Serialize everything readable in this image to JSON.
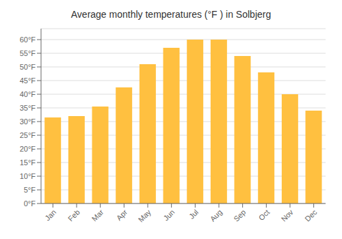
{
  "chart_data": {
    "type": "bar",
    "title": "Average monthly temperatures (°F ) in Solbjerg",
    "categories": [
      "Jan",
      "Feb",
      "Mar",
      "Apr",
      "May",
      "Jun",
      "Jul",
      "Aug",
      "Sep",
      "Oct",
      "Nov",
      "Dec"
    ],
    "values": [
      31.5,
      32.0,
      35.5,
      42.5,
      51.0,
      57.0,
      60.0,
      60.0,
      54.0,
      48.0,
      40.0,
      34.0
    ],
    "color": "#FFC040",
    "ylim": [
      0,
      64
    ],
    "yticks": [
      {
        "value": 0,
        "label": "0°F"
      },
      {
        "value": 5,
        "label": "5°F"
      },
      {
        "value": 10,
        "label": "10°F"
      },
      {
        "value": 15,
        "label": "15°F"
      },
      {
        "value": 20,
        "label": "20°F"
      },
      {
        "value": 25,
        "label": "25°F"
      },
      {
        "value": 30,
        "label": "30°F"
      },
      {
        "value": 35,
        "label": "35°F"
      },
      {
        "value": 40,
        "label": "40°F"
      },
      {
        "value": 45,
        "label": "45°F"
      },
      {
        "value": 50,
        "label": "50°F"
      },
      {
        "value": 55,
        "label": "55°F"
      },
      {
        "value": 60,
        "label": "60°F"
      }
    ],
    "grid": true
  }
}
